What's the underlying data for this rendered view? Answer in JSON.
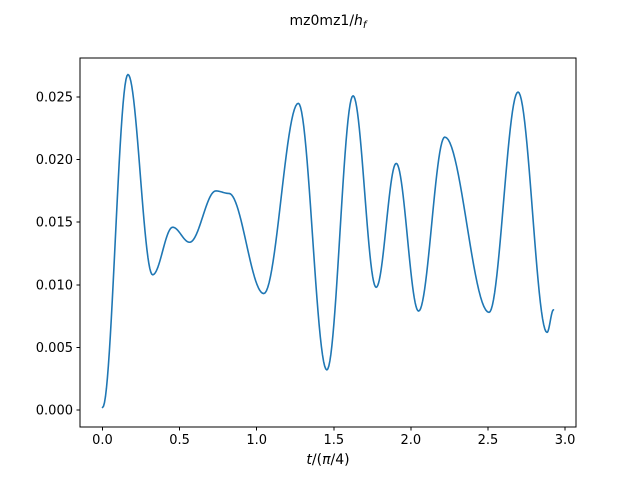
{
  "figure": {
    "background": "#ffffff"
  },
  "chart_data": {
    "type": "line",
    "title": {
      "text": "mz0mz1/h_f",
      "parts": [
        {
          "t": "mz0mz1/",
          "s": "upright"
        },
        {
          "t": "h",
          "s": "italic"
        },
        {
          "t": "f",
          "s": "sub-italic"
        }
      ]
    },
    "xlabel": {
      "text": "t/(π/4)",
      "parts": [
        {
          "t": "t",
          "s": "italic"
        },
        {
          "t": "/(",
          "s": "upright"
        },
        {
          "t": "π",
          "s": "italic"
        },
        {
          "t": "/4)",
          "s": "upright"
        }
      ]
    },
    "ylabel": "",
    "x_ticks": [
      "0.0",
      "0.5",
      "1.0",
      "1.5",
      "2.0",
      "2.5",
      "3.0"
    ],
    "x_tick_values": [
      0.0,
      0.5,
      1.0,
      1.5,
      2.0,
      2.5,
      3.0
    ],
    "y_ticks": [
      "0.000",
      "0.005",
      "0.010",
      "0.015",
      "0.020",
      "0.025"
    ],
    "y_tick_values": [
      0.0,
      0.005,
      0.01,
      0.015,
      0.02,
      0.025
    ],
    "xlim": [
      -0.146,
      3.071
    ],
    "ylim": [
      -0.00136,
      0.02812
    ],
    "grid": false,
    "legend": null,
    "axis_color": "#000000",
    "series": [
      {
        "name": "mz0mz1/hf",
        "color": "#1f77b4",
        "line_width": 1.6,
        "interpolation": "cosine-between-extrema",
        "x": [
          0.0,
          0.165,
          0.325,
          0.455,
          0.565,
          0.735,
          0.82,
          1.046,
          1.27,
          1.455,
          1.625,
          1.775,
          1.905,
          2.05,
          2.22,
          2.507,
          2.695,
          2.883,
          2.925
        ],
        "y": [
          0.0002,
          0.0268,
          0.0108,
          0.0146,
          0.0134,
          0.0175,
          0.0173,
          0.0093,
          0.0245,
          0.0032,
          0.0251,
          0.0098,
          0.0197,
          0.0079,
          0.0218,
          0.0078,
          0.0254,
          0.0062,
          0.008
        ]
      }
    ]
  }
}
